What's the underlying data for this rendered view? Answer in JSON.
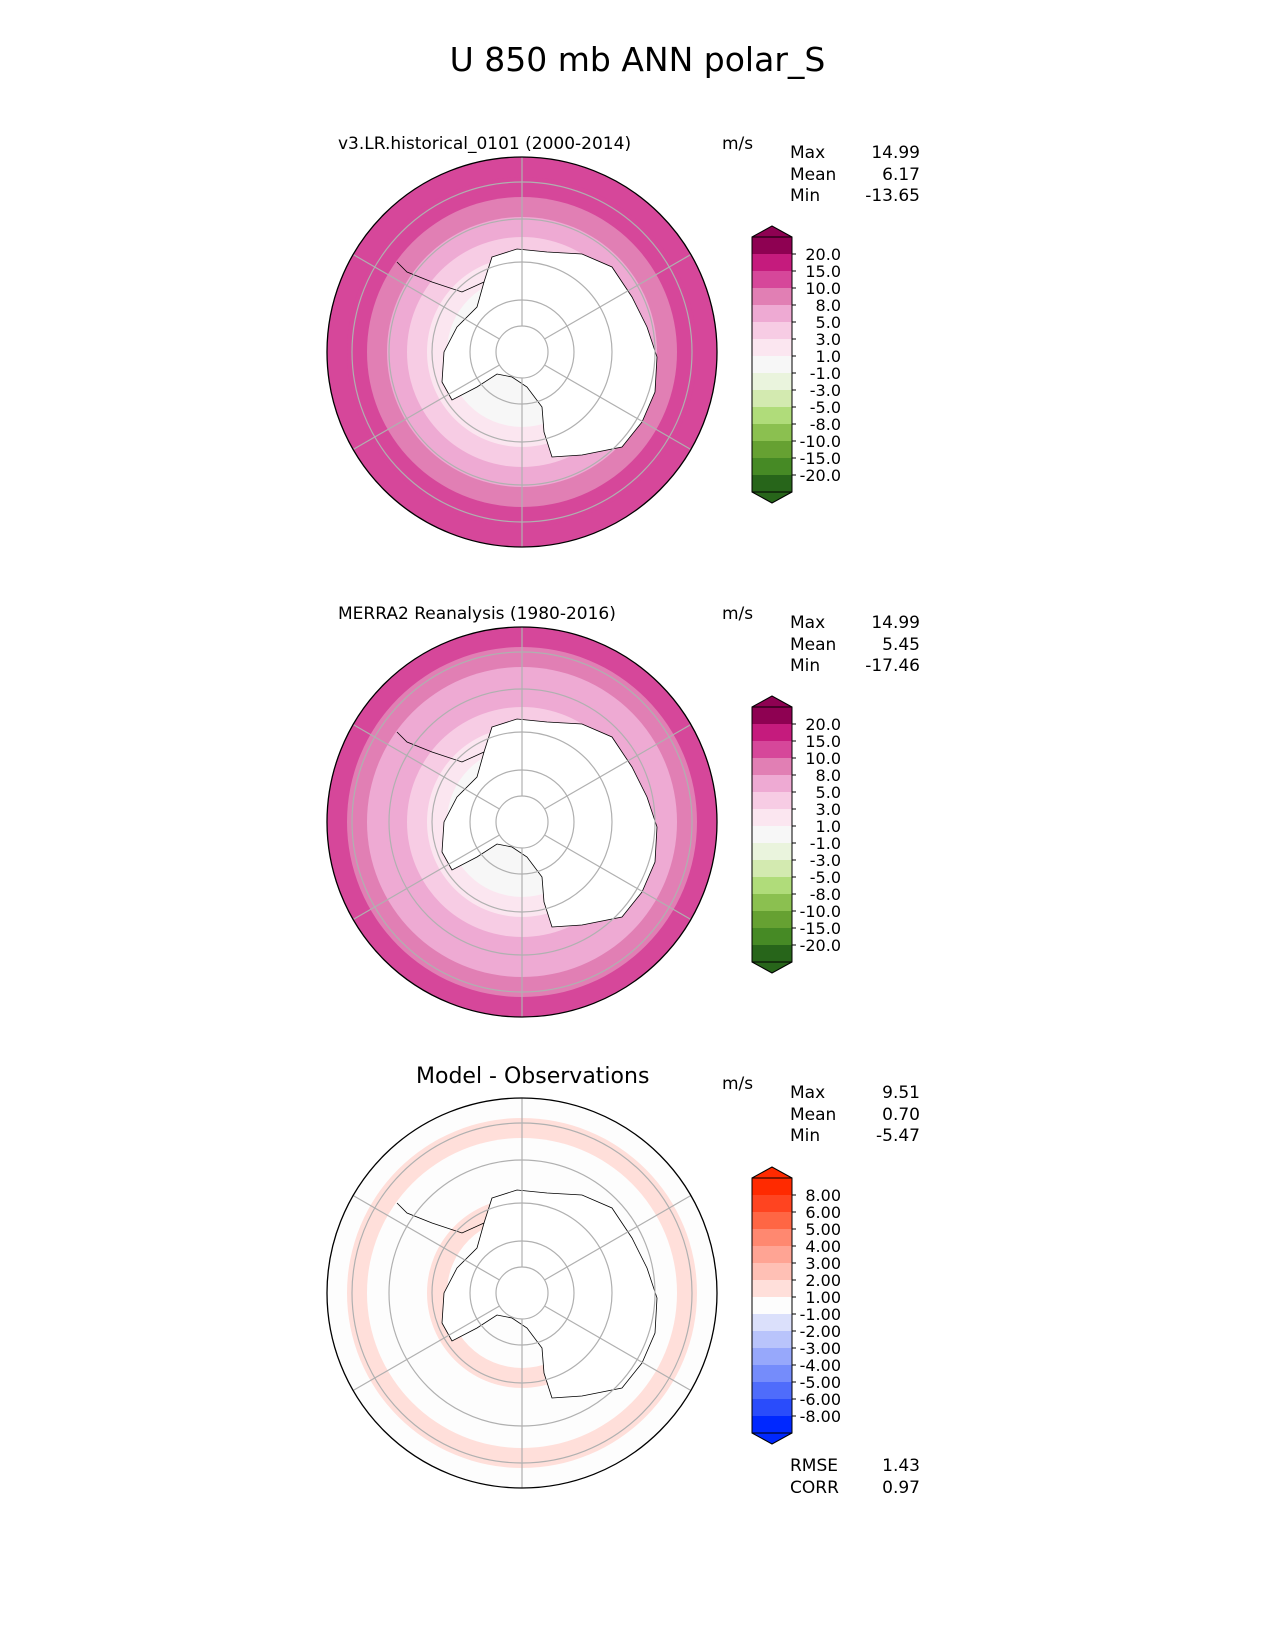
{
  "title": "U 850 mb ANN polar_S",
  "chart_data": [
    {
      "type": "heatmap",
      "projection": "south-polar-stereographic",
      "title": "v3.LR.historical_0101 (2000-2014)",
      "units": "m/s",
      "stats": {
        "max_label": "Max",
        "max": "14.99",
        "mean_label": "Mean",
        "mean": "6.17",
        "min_label": "Min",
        "min": "-13.65"
      },
      "colorbar": {
        "levels": [
          "20.0",
          "15.0",
          "10.0",
          "8.0",
          "5.0",
          "3.0",
          "1.0",
          "-1.0",
          "-3.0",
          "-5.0",
          "-8.0",
          "-10.0",
          "-15.0",
          "-20.0"
        ],
        "colors": [
          "#8e0152",
          "#c51b7d",
          "#d6479a",
          "#e17fb4",
          "#eeaad3",
          "#f7cce4",
          "#fbe6f0",
          "#f7f7f7",
          "#eaf4dd",
          "#d3eab0",
          "#b0dc7a",
          "#8bc050",
          "#66a132",
          "#468a25",
          "#27651a"
        ]
      },
      "rings": [
        "#d6479a",
        "#d6479a",
        "#e17fb4",
        "#eeaad3",
        "#f7cce4",
        "#fbe6f0",
        "#f7f7f7"
      ]
    },
    {
      "type": "heatmap",
      "projection": "south-polar-stereographic",
      "title": "MERRA2 Reanalysis (1980-2016)",
      "units": "m/s",
      "stats": {
        "max_label": "Max",
        "max": "14.99",
        "mean_label": "Mean",
        "mean": "5.45",
        "min_label": "Min",
        "min": "-17.46"
      },
      "colorbar": {
        "levels": [
          "20.0",
          "15.0",
          "10.0",
          "8.0",
          "5.0",
          "3.0",
          "1.0",
          "-1.0",
          "-3.0",
          "-5.0",
          "-8.0",
          "-10.0",
          "-15.0",
          "-20.0"
        ],
        "colors": [
          "#8e0152",
          "#c51b7d",
          "#d6479a",
          "#e17fb4",
          "#eeaad3",
          "#f7cce4",
          "#fbe6f0",
          "#f7f7f7",
          "#eaf4dd",
          "#d3eab0",
          "#b0dc7a",
          "#8bc050",
          "#66a132",
          "#468a25",
          "#27651a"
        ]
      },
      "rings": [
        "#d6479a",
        "#e17fb4",
        "#eeaad3",
        "#eeaad3",
        "#f7cce4",
        "#fbe6f0",
        "#f7f7f7"
      ]
    },
    {
      "type": "heatmap",
      "projection": "south-polar-stereographic",
      "title": "Model - Observations",
      "units": "m/s",
      "stats": {
        "max_label": "Max",
        "max": "9.51",
        "mean_label": "Mean",
        "mean": "0.70",
        "min_label": "Min",
        "min": "-5.47"
      },
      "extra_stats": {
        "rmse_label": "RMSE",
        "rmse": "1.43",
        "corr_label": "CORR",
        "corr": "0.97"
      },
      "colorbar": {
        "levels": [
          "8.00",
          "6.00",
          "5.00",
          "4.00",
          "3.00",
          "2.00",
          "1.00",
          "-1.00",
          "-2.00",
          "-3.00",
          "-4.00",
          "-5.00",
          "-6.00",
          "-8.00"
        ],
        "colors": [
          "#ff2a00",
          "#ff4420",
          "#ff6644",
          "#ff8870",
          "#ffa494",
          "#ffc0b5",
          "#ffdfda",
          "#fdfdfd",
          "#dbe0fb",
          "#b9c4fb",
          "#97a8fb",
          "#758cfb",
          "#4f6cfb",
          "#2a4cfb",
          "#0028ff"
        ]
      },
      "rings": [
        "#fdfdfd",
        "#ffdfda",
        "#fdfdfd",
        "#fdfdfd",
        "#fdfdfd",
        "#ffdfda",
        "#fdfdfd"
      ]
    }
  ]
}
